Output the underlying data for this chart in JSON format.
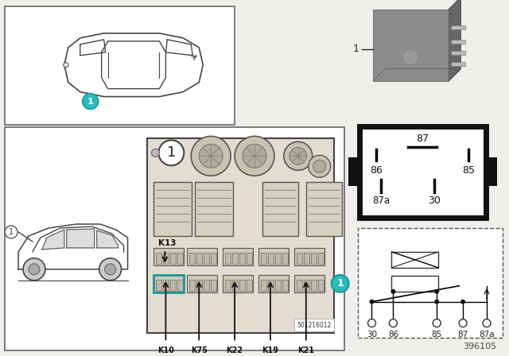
{
  "bg_color": "#f0efeb",
  "white": "#ffffff",
  "black": "#111111",
  "teal": "#2abcbc",
  "part_number": "396105",
  "fuse_box_number": "501216012",
  "relay_bottom_pins": [
    "30",
    "86",
    "85",
    "87",
    "87a"
  ],
  "relay_pinbox_labels": [
    "87",
    "86",
    "85",
    "87a",
    "30"
  ],
  "K_labels": [
    "K10",
    "K75",
    "K22",
    "K19",
    "K21"
  ]
}
